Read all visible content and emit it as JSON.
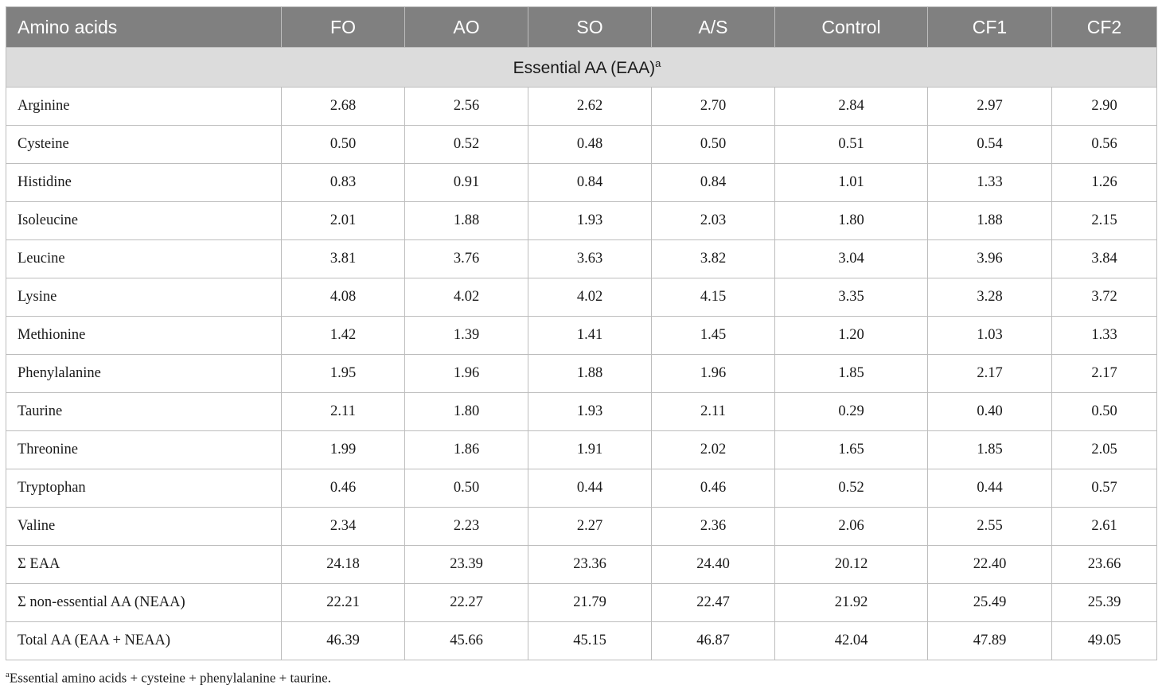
{
  "table": {
    "headers": [
      "Amino acids",
      "FO",
      "AO",
      "SO",
      "A/S",
      "Control",
      "CF1",
      "CF2"
    ],
    "section_label": "Essential AA (EAA)",
    "section_sup": "a",
    "rows": [
      {
        "label": "Arginine",
        "values": [
          "2.68",
          "2.56",
          "2.62",
          "2.70",
          "2.84",
          "2.97",
          "2.90"
        ]
      },
      {
        "label": "Cysteine",
        "values": [
          "0.50",
          "0.52",
          "0.48",
          "0.50",
          "0.51",
          "0.54",
          "0.56"
        ]
      },
      {
        "label": "Histidine",
        "values": [
          "0.83",
          "0.91",
          "0.84",
          "0.84",
          "1.01",
          "1.33",
          "1.26"
        ]
      },
      {
        "label": "Isoleucine",
        "values": [
          "2.01",
          "1.88",
          "1.93",
          "2.03",
          "1.80",
          "1.88",
          "2.15"
        ]
      },
      {
        "label": "Leucine",
        "values": [
          "3.81",
          "3.76",
          "3.63",
          "3.82",
          "3.04",
          "3.96",
          "3.84"
        ]
      },
      {
        "label": "Lysine",
        "values": [
          "4.08",
          "4.02",
          "4.02",
          "4.15",
          "3.35",
          "3.28",
          "3.72"
        ]
      },
      {
        "label": "Methionine",
        "values": [
          "1.42",
          "1.39",
          "1.41",
          "1.45",
          "1.20",
          "1.03",
          "1.33"
        ]
      },
      {
        "label": "Phenylalanine",
        "values": [
          "1.95",
          "1.96",
          "1.88",
          "1.96",
          "1.85",
          "2.17",
          "2.17"
        ]
      },
      {
        "label": "Taurine",
        "values": [
          "2.11",
          "1.80",
          "1.93",
          "2.11",
          "0.29",
          "0.40",
          "0.50"
        ]
      },
      {
        "label": "Threonine",
        "values": [
          "1.99",
          "1.86",
          "1.91",
          "2.02",
          "1.65",
          "1.85",
          "2.05"
        ]
      },
      {
        "label": "Tryptophan",
        "values": [
          "0.46",
          "0.50",
          "0.44",
          "0.46",
          "0.52",
          "0.44",
          "0.57"
        ]
      },
      {
        "label": "Valine",
        "values": [
          "2.34",
          "2.23",
          "2.27",
          "2.36",
          "2.06",
          "2.55",
          "2.61"
        ]
      },
      {
        "label": "Σ EAA",
        "values": [
          "24.18",
          "23.39",
          "23.36",
          "24.40",
          "20.12",
          "22.40",
          "23.66"
        ]
      },
      {
        "label": "Σ non-essential AA (NEAA)",
        "values": [
          "22.21",
          "22.27",
          "21.79",
          "22.47",
          "21.92",
          "25.49",
          "25.39"
        ]
      },
      {
        "label": "Total AA (EAA + NEAA)",
        "values": [
          "46.39",
          "45.66",
          "45.15",
          "46.87",
          "42.04",
          "47.89",
          "49.05"
        ]
      }
    ]
  },
  "footnote": {
    "marker": "a",
    "text": "Essential amino acids + cysteine + phenylalanine + taurine."
  },
  "colors": {
    "header_bg": "#808080",
    "header_text": "#ffffff",
    "section_bg": "#dcdcdc",
    "border": "#bdbdbd"
  }
}
